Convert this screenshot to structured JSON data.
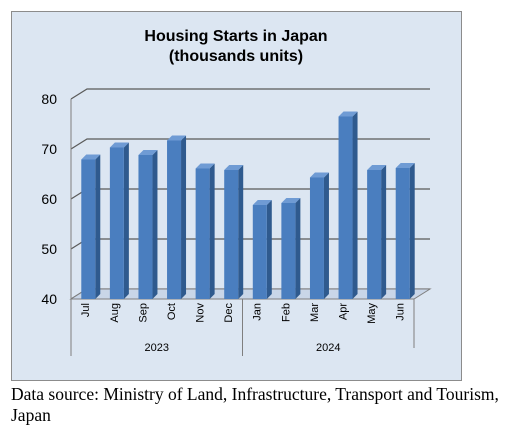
{
  "chart_data": {
    "type": "bar",
    "title": "Housing Starts in Japan",
    "subtitle": "(thousands units)",
    "categories": [
      "Jul",
      "Aug",
      "Sep",
      "Oct",
      "Nov",
      "Dec",
      "Jan",
      "Feb",
      "Mar",
      "Apr",
      "May",
      "Jun"
    ],
    "groups": [
      {
        "label": "2023",
        "categories": [
          "Jul",
          "Aug",
          "Sep",
          "Oct",
          "Nov",
          "Dec"
        ]
      },
      {
        "label": "2024",
        "categories": [
          "Jan",
          "Feb",
          "Mar",
          "Apr",
          "May",
          "Jun"
        ]
      }
    ],
    "values": [
      67.9,
      70.3,
      68.8,
      71.7,
      66.1,
      65.8,
      58.8,
      59.2,
      64.3,
      76.5,
      65.8,
      66.2
    ],
    "ylim": [
      40,
      80
    ],
    "yticks": [
      40,
      50,
      60,
      70,
      80
    ],
    "grid": true,
    "legend": "none",
    "style": "3d",
    "colors": {
      "bar_front": "#4a7ebf",
      "bar_side": "#2f5a8e",
      "bar_top": "#6f9bd4",
      "plot_background": "#dce6f2",
      "gridline": "#5a5a5a"
    }
  },
  "footer": {
    "source": "Data source: Ministry of Land, Infrastructure, Transport and Tourism, Japan"
  }
}
